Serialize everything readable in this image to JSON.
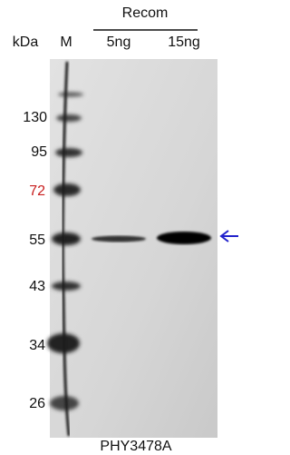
{
  "header": {
    "group": "Recom",
    "unit": "kDa",
    "lanes": [
      "M",
      "5ng",
      "15ng"
    ]
  },
  "markers": [
    "130",
    "95",
    "72",
    "55",
    "43",
    "34",
    "26"
  ],
  "footer": "PHY3478A"
}
